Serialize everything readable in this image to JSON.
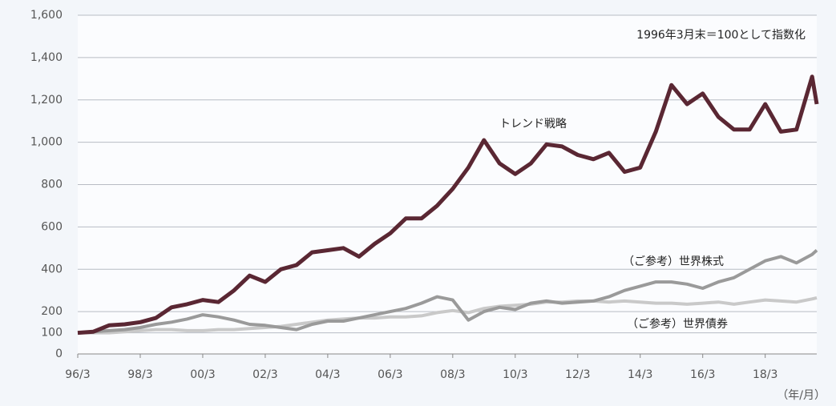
{
  "chart_data": {
    "type": "line",
    "annotations": [
      "1996年3月末＝100として指数化"
    ],
    "x_unit_label": "（年/月）",
    "xlim": [
      1996.25,
      2019.9
    ],
    "xticks": [
      {
        "value": 1996.25,
        "label": "96/3"
      },
      {
        "value": 1998.25,
        "label": "98/3"
      },
      {
        "value": 2000.25,
        "label": "00/3"
      },
      {
        "value": 2002.25,
        "label": "02/3"
      },
      {
        "value": 2004.25,
        "label": "04/3"
      },
      {
        "value": 2006.25,
        "label": "06/3"
      },
      {
        "value": 2008.25,
        "label": "08/3"
      },
      {
        "value": 2010.25,
        "label": "10/3"
      },
      {
        "value": 2012.25,
        "label": "12/3"
      },
      {
        "value": 2014.25,
        "label": "14/3"
      },
      {
        "value": 2016.25,
        "label": "16/3"
      },
      {
        "value": 2018.25,
        "label": "18/3"
      }
    ],
    "ylim": [
      0,
      1600
    ],
    "yticks": [
      0,
      100,
      200,
      400,
      600,
      800,
      {
        "value": 1000,
        "label": "1,000"
      },
      {
        "value": 1200,
        "label": "1,200"
      },
      {
        "value": 1400,
        "label": "1,400"
      },
      {
        "value": 1600,
        "label": "1,600"
      }
    ],
    "grid": true,
    "x": [
      1996.25,
      1996.75,
      1997.25,
      1997.75,
      1998.25,
      1998.75,
      1999.25,
      1999.75,
      2000.25,
      2000.75,
      2001.25,
      2001.75,
      2002.25,
      2002.75,
      2003.25,
      2003.75,
      2004.25,
      2004.75,
      2005.25,
      2005.75,
      2006.25,
      2006.75,
      2007.25,
      2007.75,
      2008.25,
      2008.75,
      2009.25,
      2009.75,
      2010.25,
      2010.75,
      2011.25,
      2011.75,
      2012.25,
      2012.75,
      2013.25,
      2013.75,
      2014.25,
      2014.75,
      2015.25,
      2015.75,
      2016.25,
      2016.75,
      2017.25,
      2017.75,
      2018.25,
      2018.75,
      2019.25,
      2019.75,
      2019.9
    ],
    "series": [
      {
        "name": "（ご参考）世界債券",
        "color": "#c9c9c9",
        "width": 4,
        "values": [
          100,
          100,
          100,
          105,
          110,
          115,
          115,
          110,
          110,
          115,
          115,
          120,
          125,
          130,
          140,
          150,
          160,
          165,
          170,
          170,
          175,
          175,
          180,
          195,
          205,
          195,
          215,
          225,
          230,
          235,
          245,
          245,
          250,
          250,
          245,
          250,
          245,
          240,
          240,
          235,
          240,
          245,
          235,
          245,
          255,
          250,
          245,
          260,
          265
        ]
      },
      {
        "name": "（ご参考）世界株式",
        "color": "#9a9a9a",
        "width": 4,
        "values": [
          100,
          105,
          110,
          115,
          125,
          140,
          150,
          165,
          185,
          175,
          160,
          140,
          135,
          125,
          115,
          140,
          155,
          155,
          170,
          185,
          200,
          215,
          240,
          270,
          255,
          160,
          200,
          220,
          210,
          240,
          250,
          240,
          245,
          250,
          270,
          300,
          320,
          340,
          340,
          330,
          310,
          340,
          360,
          400,
          440,
          460,
          430,
          470,
          490
        ]
      },
      {
        "name": "トレンド戦略",
        "color": "#5a2733",
        "width": 5,
        "values": [
          100,
          105,
          135,
          140,
          150,
          170,
          220,
          235,
          255,
          245,
          300,
          370,
          340,
          400,
          420,
          480,
          490,
          500,
          460,
          520,
          570,
          640,
          640,
          700,
          780,
          880,
          1010,
          900,
          850,
          900,
          990,
          980,
          940,
          920,
          950,
          860,
          880,
          1050,
          1270,
          1180,
          1230,
          1120,
          1060,
          1060,
          1180,
          1050,
          1060,
          1310,
          1180
        ]
      }
    ]
  }
}
